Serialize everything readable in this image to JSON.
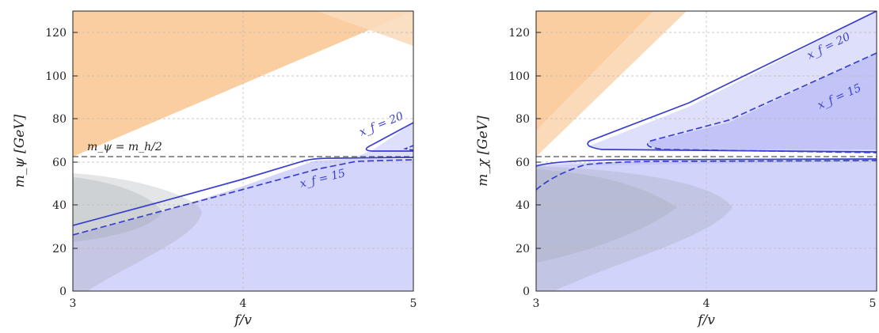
{
  "chart_data": [
    {
      "type": "area",
      "xlabel": "f/v",
      "ylabel": "m_ψ [GeV]",
      "xlim": [
        3,
        5
      ],
      "ylim": [
        0,
        130
      ],
      "xticks": [
        "3",
        "4",
        "5"
      ],
      "yticks": [
        "0",
        "20",
        "40",
        "60",
        "80",
        "100",
        "120"
      ],
      "grid": true,
      "reference_line": {
        "y": 62.5,
        "label": "m_ψ = m_h/2"
      },
      "colors": {
        "orange": "#f9c590",
        "orange_light": "#fbdcbd",
        "blue": "#7c7ff0",
        "grey": "#9aa0aa",
        "line": "#3a3fd0"
      },
      "regions": {
        "orange_excluded": {
          "x": [
            3.0,
            3.0,
            4.95
          ],
          "y": [
            130,
            62.5,
            130
          ]
        },
        "blue_allowed_dark": {
          "x": [
            3.0,
            3.5,
            4.0,
            4.4,
            4.6,
            5.0,
            5.0,
            3.0
          ],
          "y": [
            26,
            36,
            48,
            60,
            61,
            61,
            0,
            0
          ]
        },
        "blue_allowed_light": {
          "x": [
            4.55,
            5.0,
            5.0,
            4.55
          ],
          "y": [
            65,
            78,
            62,
            62
          ]
        },
        "grey_blob_outer": {
          "x": [
            3.0,
            3.5,
            3.75,
            3.6,
            3.2,
            3.1,
            3.0
          ],
          "y": [
            48,
            45,
            38,
            25,
            12,
            0,
            0
          ]
        },
        "grey_blob_inner": {
          "x": [
            3.0,
            3.3,
            3.55,
            3.3,
            3.0
          ],
          "y": [
            46,
            42,
            36,
            28,
            22
          ]
        }
      },
      "contours": [
        {
          "name": "x_f = 20",
          "style": "solid",
          "x": [
            3.0,
            3.5,
            4.0,
            4.4,
            4.6,
            4.9,
            5.0
          ],
          "y": [
            30.5,
            41,
            52,
            61,
            61.5,
            62,
            62
          ],
          "branch": {
            "x": [
              4.57,
              4.8,
              5.0
            ],
            "y": [
              65.5,
              71,
              78
            ]
          }
        },
        {
          "name": "x_f = 15",
          "style": "dashed",
          "x": [
            3.0,
            3.5,
            4.0,
            4.5,
            4.8,
            5.0
          ],
          "y": [
            26,
            37,
            47,
            57,
            60.5,
            61
          ],
          "branch": {
            "x": [
              4.93,
              5.0
            ],
            "y": [
              65.5,
              67
            ]
          }
        }
      ]
    },
    {
      "type": "area",
      "xlabel": "f/v",
      "ylabel": "m_χ [GeV]",
      "xlim": [
        3,
        5
      ],
      "ylim": [
        0,
        130
      ],
      "xticks": [
        "3",
        "4",
        "5"
      ],
      "yticks": [
        "0",
        "20",
        "40",
        "60",
        "80",
        "100",
        "120"
      ],
      "grid": true,
      "reference_line": {
        "y": 62.5
      },
      "regions": {
        "orange_excluded": {
          "x": [
            3.0,
            3.0,
            3.65
          ],
          "y": [
            130,
            62.5,
            130
          ]
        },
        "blue_allowed": {
          "x": [
            3.3,
            5.0,
            5.0,
            3.3
          ],
          "y": [
            65,
            130,
            64,
            64
          ]
        },
        "blue_allowed_low": {
          "x": [
            3.0,
            5.0,
            5.0,
            3.0
          ],
          "y": [
            58.5,
            61,
            0,
            0
          ]
        },
        "grey_blob_outer": {
          "x": [
            3.0,
            3.6,
            4.15,
            3.6,
            3.1,
            3.0
          ],
          "y": [
            60,
            55,
            38,
            18,
            3,
            0
          ]
        },
        "grey_blob_inner": {
          "x": [
            3.0,
            3.5,
            3.82,
            3.5,
            3.0
          ],
          "y": [
            58,
            52,
            38,
            22,
            13
          ]
        }
      },
      "contours": [
        {
          "name": "x_f = 20",
          "style": "solid",
          "x": [
            3.3,
            3.6,
            4.0,
            4.5,
            5.0
          ],
          "y": [
            67,
            78,
            92,
            111,
            130
          ],
          "lower": {
            "x": [
              3.3,
              3.4,
              4.0,
              5.0
            ],
            "y": [
              67,
              65,
              64.5,
              64
            ]
          }
        },
        {
          "name": "x_f = 15",
          "style": "dashed",
          "x": [
            3.75,
            4.0,
            4.5,
            5.0
          ],
          "y": [
            68,
            75,
            93,
            110
          ],
          "lower": {
            "x": [
              3.75,
              3.9,
              4.5,
              5.0
            ],
            "y": [
              68,
              65.5,
              64.5,
              64
            ]
          }
        }
      ]
    }
  ],
  "annotations": {
    "left_ref": "m_ψ = m_h/2",
    "left_xf20": "x_f = 20",
    "left_xf15": "x_f = 15",
    "right_xf20": "x_f = 20",
    "right_xf15": "x_f = 15"
  }
}
